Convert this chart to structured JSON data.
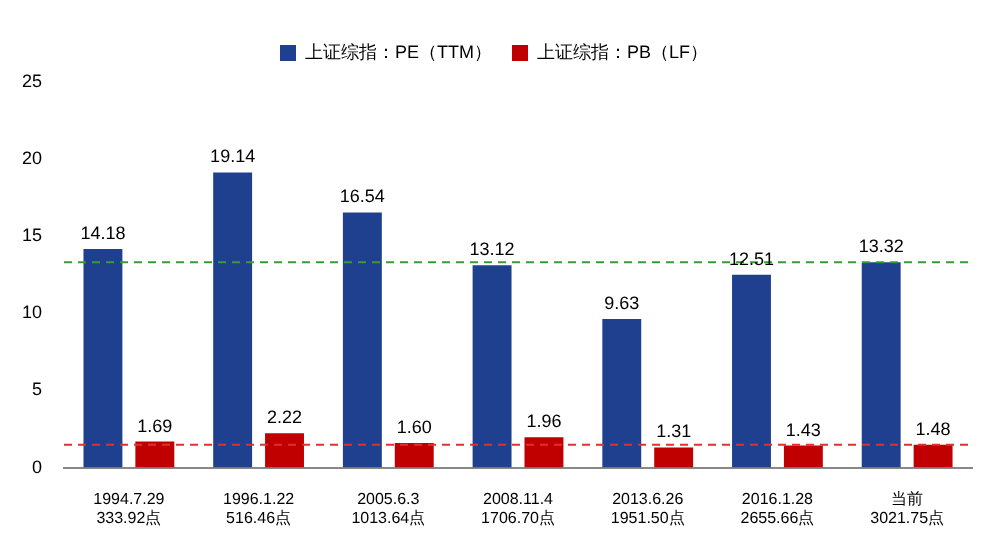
{
  "chart_data": {
    "type": "bar",
    "categories": [
      "1994.7.29\n333.92点",
      "1996.1.22\n516.46点",
      "2005.6.3\n1013.64点",
      "2008.11.4\n1706.70点",
      "2013.6.26\n1951.50点",
      "2016.1.28\n2655.66点",
      "当前\n3021.75点"
    ],
    "series": [
      {
        "name": "上证综指：PE（TTM）",
        "color": "#1f3f8f",
        "values": [
          14.18,
          19.14,
          16.54,
          13.12,
          9.63,
          12.51,
          13.32
        ],
        "value_labels": [
          "14.18",
          "19.14",
          "16.54",
          "13.12",
          "9.63",
          "12.51",
          "13.32"
        ]
      },
      {
        "name": "上证综指：PB（LF）",
        "color": "#c00000",
        "values": [
          1.69,
          2.22,
          1.6,
          1.96,
          1.31,
          1.43,
          1.48
        ],
        "value_labels": [
          "1.69",
          "2.22",
          "1.60",
          "1.96",
          "1.31",
          "1.43",
          "1.48"
        ]
      }
    ],
    "ylim": [
      0,
      25
    ],
    "yticks": [
      0,
      5,
      10,
      15,
      20,
      25
    ],
    "grid": false,
    "legend": "top",
    "ref_lines": [
      {
        "axis": "y",
        "value": 13.32,
        "color": "#3a9a3a",
        "line_style": "dashed"
      },
      {
        "axis": "y",
        "value": 1.48,
        "color": "#e03030",
        "line_style": "dashed"
      }
    ]
  }
}
